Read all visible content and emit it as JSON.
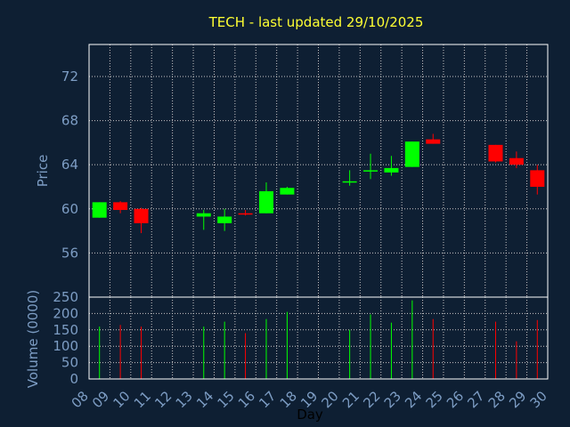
{
  "chart_data": {
    "type": "candlestick",
    "title": "TECH - last updated 29/10/2025",
    "xlabel": "Day",
    "ylabel_price": "Price",
    "ylabel_volume": "Volume (0000)",
    "x_ticks": [
      "08",
      "09",
      "10",
      "11",
      "12",
      "13",
      "14",
      "15",
      "16",
      "17",
      "18",
      "19",
      "20",
      "21",
      "22",
      "23",
      "24",
      "25",
      "26",
      "27",
      "28",
      "29",
      "30"
    ],
    "x_range": [
      8,
      30
    ],
    "price_ticks": [
      56,
      60,
      64,
      68,
      72
    ],
    "price_range": [
      52.0,
      74.9
    ],
    "volume_ticks": [
      0,
      50,
      100,
      150,
      200,
      250
    ],
    "volume_range": [
      0,
      250
    ],
    "grid": true,
    "colors": {
      "background": "#0e1f33",
      "plot_background": "#0e1f33",
      "grid": "#c8c8c8",
      "axis_text": "#7d9dc4",
      "title": "#ffff33",
      "up": "#00ff00",
      "down": "#ff0000",
      "frame": "#ffffff"
    },
    "candles": [
      {
        "day": 8,
        "open": 59.2,
        "close": 60.6,
        "high": 60.6,
        "low": 59.2,
        "volume": 160
      },
      {
        "day": 9,
        "open": 60.6,
        "close": 59.9,
        "high": 60.7,
        "low": 59.6,
        "volume": 165
      },
      {
        "day": 10,
        "open": 60.0,
        "close": 58.7,
        "high": 60.1,
        "low": 57.8,
        "volume": 160
      },
      {
        "day": 13,
        "open": 59.3,
        "close": 59.6,
        "high": 59.9,
        "low": 58.1,
        "volume": 160
      },
      {
        "day": 14,
        "open": 58.7,
        "close": 59.3,
        "high": 60.0,
        "low": 58.0,
        "volume": 175
      },
      {
        "day": 15,
        "open": 59.6,
        "close": 59.5,
        "high": 59.9,
        "low": 59.4,
        "volume": 140
      },
      {
        "day": 16,
        "open": 59.6,
        "close": 61.6,
        "high": 62.4,
        "low": 59.6,
        "volume": 183
      },
      {
        "day": 17,
        "open": 61.3,
        "close": 61.9,
        "high": 62.0,
        "low": 61.3,
        "volume": 205
      },
      {
        "day": 20,
        "open": 62.4,
        "close": 62.5,
        "high": 63.5,
        "low": 62.1,
        "volume": 150
      },
      {
        "day": 21,
        "open": 63.4,
        "close": 63.5,
        "high": 65.0,
        "low": 62.7,
        "volume": 197
      },
      {
        "day": 22,
        "open": 63.3,
        "close": 63.7,
        "high": 64.8,
        "low": 63.0,
        "volume": 172
      },
      {
        "day": 23,
        "open": 63.8,
        "close": 66.1,
        "high": 66.1,
        "low": 63.8,
        "volume": 240
      },
      {
        "day": 24,
        "open": 66.3,
        "close": 65.9,
        "high": 66.8,
        "low": 65.9,
        "volume": 183
      },
      {
        "day": 27,
        "open": 65.8,
        "close": 64.3,
        "high": 65.8,
        "low": 64.2,
        "volume": 175
      },
      {
        "day": 28,
        "open": 64.6,
        "close": 64.0,
        "high": 65.2,
        "low": 63.7,
        "volume": 115
      },
      {
        "day": 29,
        "open": 63.5,
        "close": 62.0,
        "high": 64.0,
        "low": 61.3,
        "volume": 180
      }
    ]
  }
}
